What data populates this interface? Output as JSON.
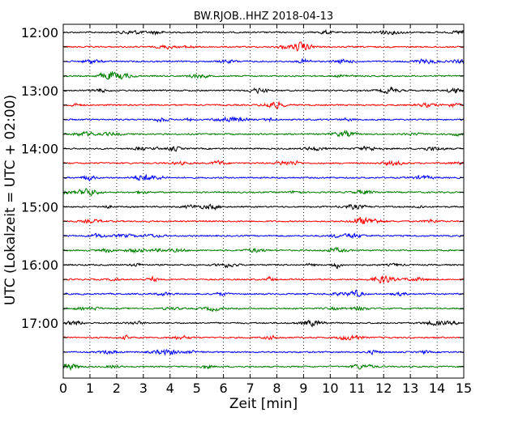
{
  "chart_data": {
    "type": "line",
    "title": "BW.RJOB..HHZ 2018-04-13",
    "xlabel": "Zeit  [min]",
    "ylabel": "UTC (Lokalzeit = UTC + 02:00)",
    "xlim": [
      0,
      15
    ],
    "x_ticks": [
      0,
      1,
      2,
      3,
      4,
      5,
      6,
      7,
      8,
      9,
      10,
      11,
      12,
      13,
      14,
      15
    ],
    "x_tick_labels": [
      "0",
      "1",
      "2",
      "3",
      "4",
      "5",
      "6",
      "7",
      "8",
      "9",
      "10",
      "11",
      "12",
      "13",
      "14",
      "15"
    ],
    "y_tick_labels": [
      "12:00",
      "13:00",
      "14:00",
      "15:00",
      "16:00",
      "17:00"
    ],
    "grid": "vertical dotted lines at each minute",
    "trace_colors": [
      "#000000",
      "#ff0000",
      "#0000ff",
      "#007f00"
    ],
    "traces": [
      {
        "start": "12:00",
        "color": "#000000"
      },
      {
        "start": "12:15",
        "color": "#ff0000"
      },
      {
        "start": "12:30",
        "color": "#0000ff"
      },
      {
        "start": "12:45",
        "color": "#007f00"
      },
      {
        "start": "13:00",
        "color": "#000000"
      },
      {
        "start": "13:15",
        "color": "#ff0000"
      },
      {
        "start": "13:30",
        "color": "#0000ff"
      },
      {
        "start": "13:45",
        "color": "#007f00"
      },
      {
        "start": "14:00",
        "color": "#000000"
      },
      {
        "start": "14:15",
        "color": "#ff0000"
      },
      {
        "start": "14:30",
        "color": "#0000ff"
      },
      {
        "start": "14:45",
        "color": "#007f00"
      },
      {
        "start": "15:00",
        "color": "#000000"
      },
      {
        "start": "15:15",
        "color": "#ff0000"
      },
      {
        "start": "15:30",
        "color": "#0000ff"
      },
      {
        "start": "15:45",
        "color": "#007f00"
      },
      {
        "start": "16:00",
        "color": "#000000"
      },
      {
        "start": "16:15",
        "color": "#ff0000"
      },
      {
        "start": "16:30",
        "color": "#0000ff"
      },
      {
        "start": "16:45",
        "color": "#007f00"
      },
      {
        "start": "17:00",
        "color": "#000000"
      },
      {
        "start": "17:15",
        "color": "#ff0000"
      },
      {
        "start": "17:30",
        "color": "#0000ff"
      },
      {
        "start": "17:45",
        "color": "#007f00"
      }
    ]
  }
}
